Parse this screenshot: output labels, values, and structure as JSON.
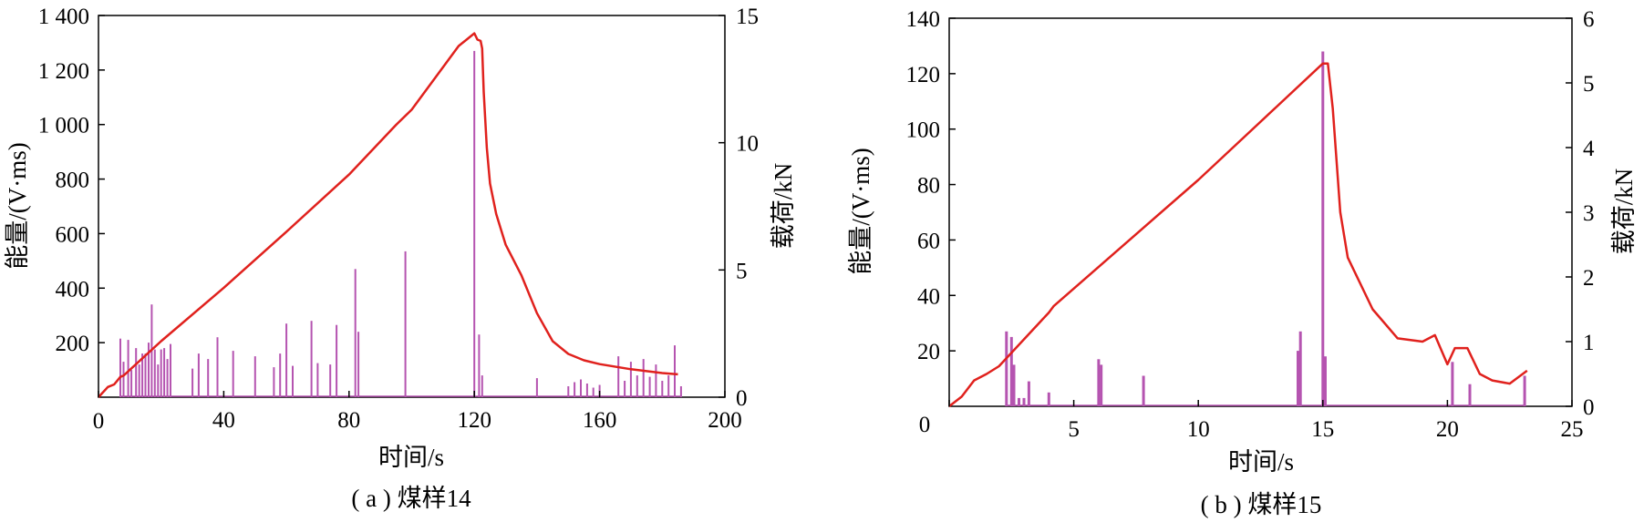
{
  "chart_data": [
    {
      "type": "bar+line",
      "caption": "( a ) 煤样14",
      "xlabel": "时间/s",
      "ylabel_left": "能量/(V·ms)",
      "ylabel_right": "载荷/kN",
      "xlim": [
        0,
        200
      ],
      "ylim_left": [
        0,
        1400
      ],
      "ylim_right": [
        0,
        15
      ],
      "x_ticks": [
        "0",
        "40",
        "80",
        "120",
        "160",
        "200"
      ],
      "y_left_ticks": [
        "200",
        "400",
        "600",
        "800",
        "1 000",
        "1 200",
        "1 400"
      ],
      "y_right_ticks": [
        "0",
        "5",
        "10",
        "15"
      ],
      "grid": false,
      "colors": {
        "energy": "#b554b0",
        "load": "#e0211d"
      },
      "series": [
        {
          "type": "bar",
          "x": [
            7,
            8,
            9.5,
            10.5,
            12,
            13,
            14,
            15,
            16,
            17,
            18,
            19,
            20,
            21,
            22,
            23,
            30,
            32,
            35,
            38,
            43,
            50,
            56,
            58,
            60,
            62,
            68,
            70,
            74,
            76,
            82,
            83,
            98,
            120,
            121.5,
            122.5,
            140,
            150,
            152,
            154,
            156,
            158,
            160,
            166,
            168,
            170,
            172,
            174,
            176,
            178,
            180,
            182,
            184,
            186
          ],
          "values": [
            215,
            130,
            210,
            100,
            180,
            120,
            160,
            160,
            200,
            340,
            175,
            120,
            175,
            180,
            140,
            195,
            105,
            160,
            140,
            220,
            170,
            150,
            110,
            160,
            270,
            115,
            280,
            125,
            120,
            265,
            470,
            240,
            535,
            1270,
            230,
            80,
            70,
            40,
            55,
            65,
            50,
            35,
            45,
            150,
            60,
            130,
            80,
            140,
            75,
            120,
            60,
            80,
            190,
            40
          ]
        },
        {
          "type": "line",
          "axis": "right",
          "x": [
            0,
            3,
            5,
            7,
            8,
            20,
            40,
            60,
            80,
            95,
            100,
            115,
            120,
            121,
            122,
            122.5,
            123,
            124,
            125,
            127,
            130,
            135,
            140,
            145,
            150,
            155,
            160,
            170,
            180,
            185
          ],
          "values": [
            0,
            0.4,
            0.5,
            0.8,
            0.85,
            2.2,
            4.3,
            6.5,
            8.75,
            10.7,
            11.3,
            13.8,
            14.3,
            14.05,
            14.0,
            13.7,
            12.0,
            9.8,
            8.4,
            7.2,
            6.0,
            4.8,
            3.3,
            2.2,
            1.7,
            1.45,
            1.3,
            1.1,
            0.95,
            0.9
          ]
        }
      ]
    },
    {
      "type": "bar+line",
      "caption": "( b ) 煤样15",
      "xlabel": "时间/s",
      "ylabel_left": "能量/(V·ms)",
      "ylabel_right": "载荷/kN",
      "xlim": [
        0,
        25
      ],
      "ylim_left": [
        0,
        140
      ],
      "ylim_right": [
        0,
        6
      ],
      "x_ticks": [
        "0",
        "5",
        "10",
        "15",
        "20",
        "25"
      ],
      "y_left_ticks": [
        "20",
        "40",
        "60",
        "80",
        "100",
        "120",
        "140"
      ],
      "y_right_ticks": [
        "0",
        "1",
        "2",
        "3",
        "4",
        "5",
        "6"
      ],
      "grid": false,
      "colors": {
        "energy": "#b554b0",
        "load": "#e0211d"
      },
      "series": [
        {
          "type": "bar",
          "x": [
            2.3,
            2.5,
            2.6,
            2.8,
            3.0,
            3.2,
            4.0,
            6.0,
            6.1,
            7.8,
            14.0,
            14.1,
            15.0,
            15.1,
            20.2,
            20.9,
            23.1
          ],
          "values": [
            27,
            25,
            15,
            3,
            3,
            9,
            5,
            17,
            15,
            11,
            20,
            27,
            128,
            18,
            16,
            8,
            11
          ]
        },
        {
          "type": "line",
          "axis": "right",
          "x": [
            0,
            0.5,
            1.0,
            1.5,
            2.0,
            4.0,
            4.2,
            10.0,
            15.0,
            15.2,
            15.4,
            15.7,
            16.0,
            17.0,
            18.0,
            19.0,
            19.5,
            20.0,
            20.3,
            20.8,
            21.3,
            21.8,
            22.5,
            23.2
          ],
          "values": [
            0,
            0.15,
            0.4,
            0.5,
            0.62,
            1.45,
            1.55,
            3.5,
            5.3,
            5.3,
            4.6,
            3.0,
            2.3,
            1.5,
            1.05,
            1.0,
            1.1,
            0.65,
            0.9,
            0.9,
            0.5,
            0.4,
            0.35,
            0.55
          ]
        }
      ]
    }
  ]
}
